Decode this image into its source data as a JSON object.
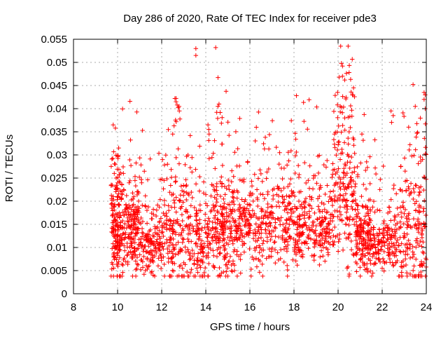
{
  "chart_data": {
    "type": "scatter",
    "title": "Day 286 of 2020, Rate Of TEC Index for receiver pde3",
    "xlabel": "GPS time / hours",
    "ylabel": "ROTI / TECUs",
    "xlim": [
      8,
      24
    ],
    "ylim": [
      0,
      0.055
    ],
    "xticks": [
      8,
      10,
      12,
      14,
      16,
      18,
      20,
      22,
      24
    ],
    "xtick_labels": [
      "8",
      "10",
      "12",
      "14",
      "16",
      "18",
      "20",
      "22",
      "24"
    ],
    "yticks": [
      0,
      0.005,
      0.01,
      0.015,
      0.02,
      0.025,
      0.03,
      0.035,
      0.04,
      0.045,
      0.05,
      0.055
    ],
    "ytick_labels": [
      "0",
      "0.005",
      "0.01",
      "0.015",
      "0.02",
      "0.025",
      "0.03",
      "0.035",
      "0.04",
      "0.045",
      "0.05",
      "0.055"
    ],
    "grid": true,
    "marker": "+",
    "color": "#ff0000",
    "point_count": 2400,
    "series": [
      {
        "name": "ROTI",
        "points": [
          [
            9.8,
            0.0365
          ],
          [
            9.9,
            0.0358
          ],
          [
            10.05,
            0.0315
          ],
          [
            10.0,
            0.0298
          ],
          [
            9.9,
            0.028
          ],
          [
            9.85,
            0.026
          ],
          [
            9.8,
            0.021
          ],
          [
            9.75,
            0.0195
          ],
          [
            9.8,
            0.0145
          ],
          [
            9.9,
            0.012
          ],
          [
            10.0,
            0.0105
          ],
          [
            9.85,
            0.008
          ],
          [
            12.6,
            0.0422
          ],
          [
            12.65,
            0.0415
          ],
          [
            12.7,
            0.0408
          ],
          [
            12.75,
            0.0402
          ],
          [
            12.8,
            0.0395
          ],
          [
            13.55,
            0.053
          ],
          [
            13.55,
            0.0515
          ],
          [
            14.45,
            0.0532
          ],
          [
            14.6,
            0.041
          ],
          [
            14.55,
            0.0405
          ],
          [
            20.15,
            0.0498
          ],
          [
            20.2,
            0.0492
          ],
          [
            20.5,
            0.0478
          ],
          [
            20.2,
            0.047
          ],
          [
            20.3,
            0.0462
          ],
          [
            20.7,
            0.0445
          ],
          [
            20.65,
            0.043
          ],
          [
            20.1,
            0.0405
          ],
          [
            20.3,
            0.038
          ],
          [
            20.5,
            0.035
          ],
          [
            23.4,
            0.0452
          ],
          [
            23.9,
            0.0435
          ],
          [
            23.95,
            0.043
          ],
          [
            23.9,
            0.042
          ],
          [
            23.95,
            0.04
          ],
          [
            23.5,
            0.0405
          ],
          [
            23.2,
            0.036
          ],
          [
            22.4,
            0.0395
          ],
          [
            22.5,
            0.0385
          ],
          [
            11.2,
            0.0042
          ],
          [
            15.2,
            0.0048
          ],
          [
            15.3,
            0.005
          ],
          [
            22.0,
            0.0055
          ],
          [
            23.8,
            0.0062
          ],
          [
            12.3,
            0.0355
          ],
          [
            12.5,
            0.0345
          ],
          [
            14.1,
            0.0365
          ],
          [
            14.15,
            0.0345
          ],
          [
            16.7,
            0.0338
          ],
          [
            17.35,
            0.0305
          ],
          [
            19.75,
            0.0258
          ],
          [
            21.1,
            0.019
          ],
          [
            21.6,
            0.0105
          ],
          [
            18.9,
            0.0155
          ]
        ]
      }
    ]
  }
}
